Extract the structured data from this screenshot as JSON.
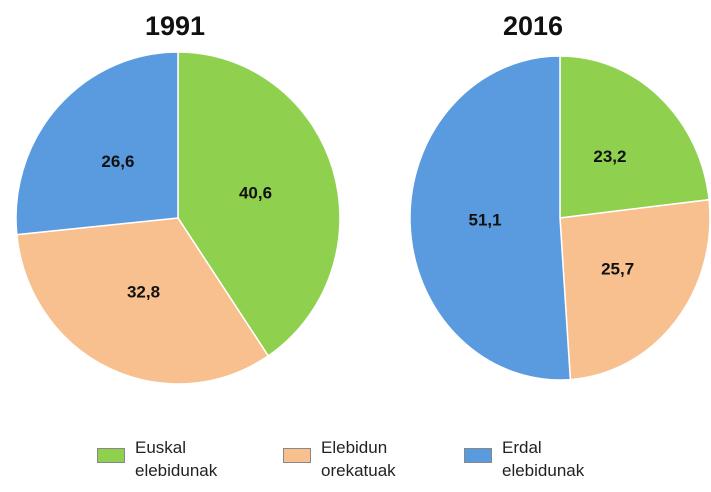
{
  "chart_data": [
    {
      "type": "pie",
      "title": "1991",
      "categories": [
        "Euskal elebidunak",
        "Elebidun orekatuak",
        "Erdal elebidunak"
      ],
      "values": [
        40.6,
        32.8,
        26.6
      ],
      "value_labels": [
        "40,6",
        "32,8",
        "26,6"
      ],
      "colors": [
        "#8fd14f",
        "#f9c08f",
        "#5a9be0"
      ]
    },
    {
      "type": "pie",
      "title": "2016",
      "categories": [
        "Euskal elebidunak",
        "Elebidun orekatuak",
        "Erdal elebidunak"
      ],
      "values": [
        23.2,
        25.7,
        51.1
      ],
      "value_labels": [
        "23,2",
        "25,7",
        "51,1"
      ],
      "colors": [
        "#8fd14f",
        "#f9c08f",
        "#5a9be0"
      ]
    }
  ]
}
